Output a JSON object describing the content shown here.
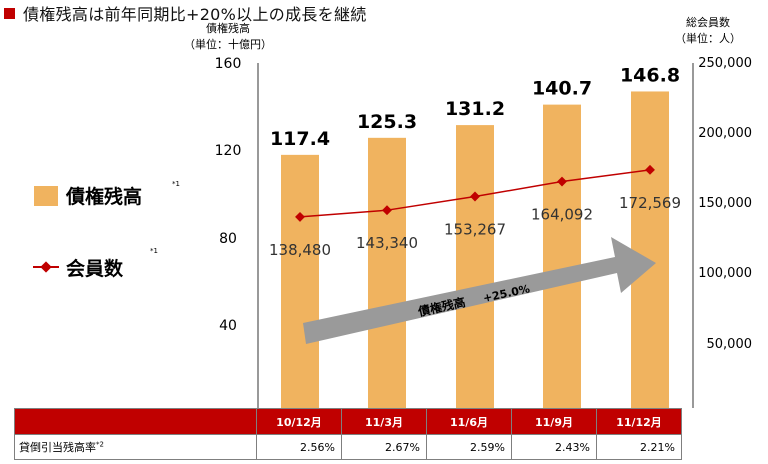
{
  "title": "債権残高は前年同期比+20%以上の成長を継続",
  "colors": {
    "bar": "#f0b35f",
    "line": "#c00000",
    "header": "#c00000",
    "arrow": "#9a9a9a"
  },
  "left_axis": {
    "label_line1": "債権残高",
    "label_line2": "（単位：十億円）",
    "ticks": [
      "160",
      "120",
      "80",
      "40"
    ]
  },
  "right_axis": {
    "label_line1": "総会員数",
    "label_line2": "（単位：人）",
    "ticks": [
      "250,000",
      "200,000",
      "150,000",
      "100,000",
      "50,000"
    ]
  },
  "legend": {
    "bar_label": "債権残高",
    "bar_note": "*1",
    "line_label": "会員数",
    "line_note": "*1"
  },
  "arrow_text": {
    "label": "債権残高",
    "growth": "+25.0%"
  },
  "chart_data": {
    "type": "bar",
    "categories": [
      "10/12月",
      "11/3月",
      "11/6月",
      "11/9月",
      "11/12月"
    ],
    "series": [
      {
        "name": "債権残高",
        "type": "bar",
        "axis": "left",
        "values": [
          117.4,
          125.3,
          131.2,
          140.7,
          146.8
        ],
        "labels": [
          "117.4",
          "125.3",
          "131.2",
          "140.7",
          "146.8"
        ]
      },
      {
        "name": "会員数",
        "type": "line",
        "axis": "right",
        "values": [
          138480,
          143340,
          153267,
          164092,
          172569
        ],
        "labels": [
          "138,480",
          "143,340",
          "153,267",
          "164,092",
          "172,569"
        ]
      }
    ],
    "ylim_left": [
      0,
      160
    ],
    "ylim_right": [
      0,
      250000
    ],
    "grid": false,
    "legend_position": "left"
  },
  "table": {
    "row_label": "貸倒引当残高率",
    "row_note": "*2",
    "values": [
      "2.56%",
      "2.67%",
      "2.59%",
      "2.43%",
      "2.21%"
    ]
  }
}
